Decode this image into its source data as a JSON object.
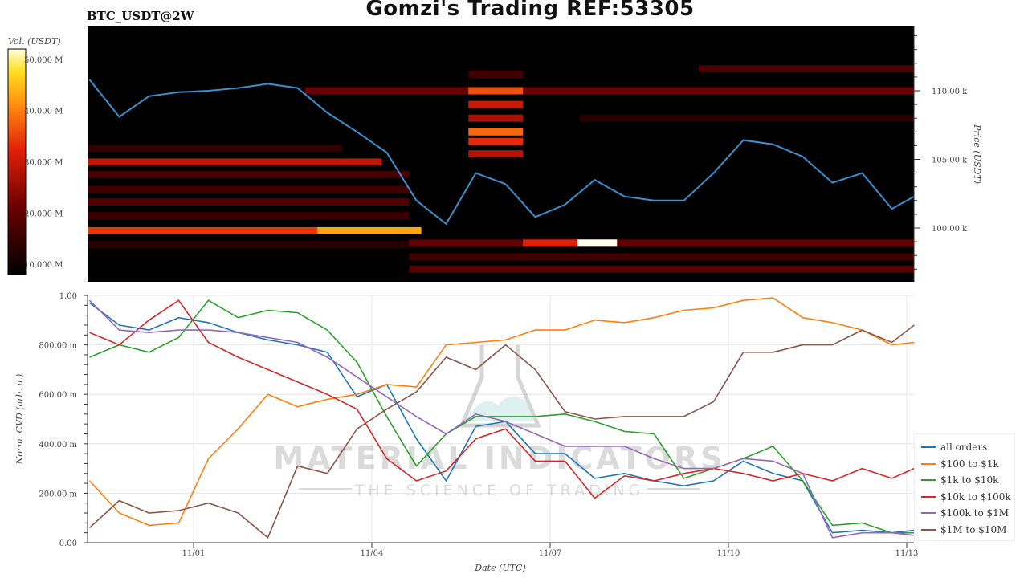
{
  "header": {
    "title": "Gomzi's Trading REF:53305",
    "pair": "BTC_USDT@2W"
  },
  "watermark": {
    "line1": "MATERIAL INDICATORS",
    "line2": "THE SCIENCE OF TRADING"
  },
  "colorbar": {
    "label": "Vol. (USDT)",
    "ticks": [
      "50.000 M",
      "40.000 M",
      "30.000 M",
      "20.000 M",
      "10.000 M"
    ],
    "tick_values": [
      50,
      40,
      30,
      20,
      10
    ],
    "range": [
      8,
      52
    ]
  },
  "chart_data": [
    {
      "type": "heatmap",
      "ylabel": "Price (USDT)",
      "ylim": [
        96.1,
        114.7
      ],
      "yticks": [
        {
          "v": 110,
          "label": "110.00 k"
        },
        {
          "v": 105,
          "label": "105.00 k"
        },
        {
          "v": 100,
          "label": "100.00 k"
        }
      ],
      "xlim": [
        "10/30 05:00",
        "11/13 03:00"
      ],
      "heat_bands": [
        {
          "price": 99.8,
          "from": "10/30 05:00",
          "to": "11/03 02:00",
          "vol": 34
        },
        {
          "price": 99.8,
          "from": "11/03 02:00",
          "to": "11/04 20:00",
          "vol": 43
        },
        {
          "price": 104.8,
          "from": "10/30 05:00",
          "to": "11/04 04:00",
          "vol": 29
        },
        {
          "price": 103.9,
          "from": "10/30 05:00",
          "to": "11/04 15:00",
          "vol": 17
        },
        {
          "price": 102.8,
          "from": "10/30 05:00",
          "to": "11/04 15:00",
          "vol": 16
        },
        {
          "price": 101.9,
          "from": "10/30 05:00",
          "to": "11/04 15:00",
          "vol": 18
        },
        {
          "price": 100.9,
          "from": "10/30 05:00",
          "to": "11/04 15:00",
          "vol": 15
        },
        {
          "price": 98.8,
          "from": "10/30 05:00",
          "to": "11/04 15:00",
          "vol": 13
        },
        {
          "price": 105.8,
          "from": "10/30 05:00",
          "to": "11/03 12:00",
          "vol": 14
        },
        {
          "price": 110.0,
          "from": "11/02 21:00",
          "to": "11/13 03:00",
          "vol": 21
        },
        {
          "price": 111.6,
          "from": "11/09 12:00",
          "to": "11/13 03:00",
          "vol": 17
        },
        {
          "price": 108.0,
          "from": "11/07 12:00",
          "to": "11/13 03:00",
          "vol": 13
        },
        {
          "price": 98.9,
          "from": "11/04 15:00",
          "to": "11/13 03:00",
          "vol": 20
        },
        {
          "price": 98.9,
          "from": "11/06 13:00",
          "to": "11/07 11:00",
          "vol": 32
        },
        {
          "price": 98.9,
          "from": "11/07 11:00",
          "to": "11/08 03:00",
          "vol": 58
        },
        {
          "price": 97.9,
          "from": "11/04 15:00",
          "to": "11/13 03:00",
          "vol": 16
        },
        {
          "price": 97.0,
          "from": "11/04 15:00",
          "to": "11/13 03:00",
          "vol": 19
        },
        {
          "price": 110.0,
          "from": "11/05 15:00",
          "to": "11/06 13:00",
          "vol": 36
        },
        {
          "price": 109.0,
          "from": "11/05 15:00",
          "to": "11/06 13:00",
          "vol": 30
        },
        {
          "price": 108.0,
          "from": "11/05 15:00",
          "to": "11/06 13:00",
          "vol": 27
        },
        {
          "price": 107.0,
          "from": "11/05 15:00",
          "to": "11/06 13:00",
          "vol": 38
        },
        {
          "price": 106.3,
          "from": "11/05 15:00",
          "to": "11/06 13:00",
          "vol": 33
        },
        {
          "price": 105.4,
          "from": "11/05 15:00",
          "to": "11/06 13:00",
          "vol": 28
        },
        {
          "price": 111.2,
          "from": "11/05 15:00",
          "to": "11/06 13:00",
          "vol": 16
        }
      ],
      "price_line": {
        "color": "#3a8fcf",
        "values": [
          110.8,
          108.1,
          109.6,
          109.9,
          110.0,
          110.2,
          110.5,
          110.2,
          108.4,
          107.0,
          105.5,
          102.0,
          100.3,
          104.0,
          103.2,
          100.8,
          101.7,
          103.5,
          102.3,
          102.0,
          102.0,
          104.0,
          106.4,
          106.1,
          105.2,
          103.3,
          104.0,
          101.4,
          102.3
        ]
      }
    },
    {
      "type": "line",
      "xlabel": "Date (UTC)",
      "ylabel": "Norm. CVD (arb. u.)",
      "ylim": [
        0,
        1
      ],
      "yticks": [
        {
          "v": 1,
          "label": "1.00"
        },
        {
          "v": 0.8,
          "label": "800.00 m"
        },
        {
          "v": 0.6,
          "label": "600.00 m"
        },
        {
          "v": 0.4,
          "label": "400.00 m"
        },
        {
          "v": 0.2,
          "label": "200.00 m"
        },
        {
          "v": 0,
          "label": "0.00"
        }
      ],
      "xticks": [
        {
          "t": "11/01 00:00",
          "label": "11/01"
        },
        {
          "t": "11/04 00:00",
          "label": "11/04"
        },
        {
          "t": "11/07 00:00",
          "label": "11/07"
        },
        {
          "t": "11/10 00:00",
          "label": "11/10"
        },
        {
          "t": "11/13 00:00",
          "label": "11/13"
        }
      ],
      "grid": true,
      "legend": "right",
      "x": [
        "10/30 06:00",
        "10/30 18:00",
        "10/31 06:00",
        "10/31 18:00",
        "11/01 06:00",
        "11/01 18:00",
        "11/02 06:00",
        "11/02 18:00",
        "11/03 06:00",
        "11/03 18:00",
        "11/04 06:00",
        "11/04 18:00",
        "11/05 06:00",
        "11/05 18:00",
        "11/06 06:00",
        "11/06 18:00",
        "11/07 06:00",
        "11/07 18:00",
        "11/08 06:00",
        "11/08 18:00",
        "11/09 06:00",
        "11/09 18:00",
        "11/10 06:00",
        "11/10 18:00",
        "11/11 06:00",
        "11/11 18:00",
        "11/12 06:00",
        "11/12 18:00",
        "11/13 03:00"
      ],
      "series": [
        {
          "name": "all orders",
          "color": "#1f77b4",
          "values": [
            0.97,
            0.88,
            0.86,
            0.91,
            0.89,
            0.85,
            0.82,
            0.8,
            0.77,
            0.59,
            0.64,
            0.42,
            0.25,
            0.47,
            0.49,
            0.36,
            0.36,
            0.26,
            0.28,
            0.25,
            0.23,
            0.25,
            0.33,
            0.28,
            0.25,
            0.04,
            0.05,
            0.04,
            0.05
          ]
        },
        {
          "name": "$100 to $1k",
          "color": "#ff7f0e",
          "values": [
            0.25,
            0.12,
            0.07,
            0.08,
            0.34,
            0.46,
            0.6,
            0.55,
            0.58,
            0.6,
            0.64,
            0.63,
            0.8,
            0.81,
            0.82,
            0.86,
            0.86,
            0.9,
            0.89,
            0.91,
            0.94,
            0.95,
            0.98,
            0.99,
            0.91,
            0.89,
            0.86,
            0.8,
            0.81
          ]
        },
        {
          "name": "$1k to $10k",
          "color": "#2ca02c",
          "values": [
            0.75,
            0.8,
            0.77,
            0.83,
            0.98,
            0.91,
            0.94,
            0.93,
            0.86,
            0.73,
            0.51,
            0.31,
            0.44,
            0.51,
            0.51,
            0.51,
            0.52,
            0.49,
            0.45,
            0.44,
            0.26,
            0.3,
            0.34,
            0.39,
            0.25,
            0.07,
            0.08,
            0.04,
            0.04
          ]
        },
        {
          "name": "$10k to $100k",
          "color": "#d62728",
          "values": [
            0.85,
            0.8,
            0.9,
            0.98,
            0.81,
            0.75,
            0.7,
            0.65,
            0.6,
            0.54,
            0.34,
            0.25,
            0.29,
            0.42,
            0.46,
            0.33,
            0.33,
            0.18,
            0.27,
            0.25,
            0.28,
            0.3,
            0.28,
            0.25,
            0.28,
            0.25,
            0.3,
            0.26,
            0.3
          ]
        },
        {
          "name": "$100k to $1M",
          "color": "#9467bd",
          "values": [
            0.98,
            0.86,
            0.85,
            0.86,
            0.86,
            0.85,
            0.83,
            0.81,
            0.75,
            0.67,
            0.59,
            0.51,
            0.44,
            0.52,
            0.49,
            0.44,
            0.39,
            0.39,
            0.39,
            0.34,
            0.3,
            0.3,
            0.34,
            0.33,
            0.28,
            0.02,
            0.04,
            0.04,
            0.03
          ]
        },
        {
          "name": "$1M to $10M",
          "color": "#8c564b",
          "values": [
            0.06,
            0.17,
            0.12,
            0.13,
            0.16,
            0.12,
            0.02,
            0.31,
            0.28,
            0.46,
            0.54,
            0.61,
            0.75,
            0.7,
            0.8,
            0.7,
            0.53,
            0.5,
            0.51,
            0.51,
            0.51,
            0.57,
            0.77,
            0.77,
            0.8,
            0.8,
            0.86,
            0.81,
            0.88
          ]
        }
      ]
    }
  ]
}
